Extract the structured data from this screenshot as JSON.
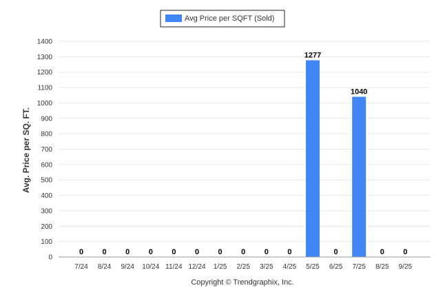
{
  "chart_data": {
    "type": "bar",
    "categories": [
      "7/24",
      "8/24",
      "9/24",
      "10/24",
      "11/24",
      "12/24",
      "1/25",
      "2/25",
      "3/25",
      "4/25",
      "5/25",
      "6/25",
      "7/25",
      "8/25",
      "9/25"
    ],
    "series": [
      {
        "name": "Avg Price per SQFT (Sold)",
        "values": [
          0,
          0,
          0,
          0,
          0,
          0,
          0,
          0,
          0,
          0,
          1277,
          0,
          1040,
          0,
          0
        ],
        "color": "#4285f4"
      }
    ],
    "data_labels": [
      "0",
      "0",
      "0",
      "0",
      "0",
      "0",
      "0",
      "0",
      "0",
      "0",
      "1277",
      "0",
      "1040",
      "0",
      "0"
    ],
    "ylabel": "Avg. Price per SQ. FT.",
    "xlabel": "",
    "ylim": [
      0,
      1400
    ],
    "yticks": [
      0,
      100,
      200,
      300,
      400,
      500,
      600,
      700,
      800,
      900,
      1000,
      1100,
      1200,
      1300,
      1400
    ],
    "grid": true,
    "legend_position": "top-center"
  },
  "footer": {
    "copyright": "Copyright © Trendgraphix, Inc."
  }
}
